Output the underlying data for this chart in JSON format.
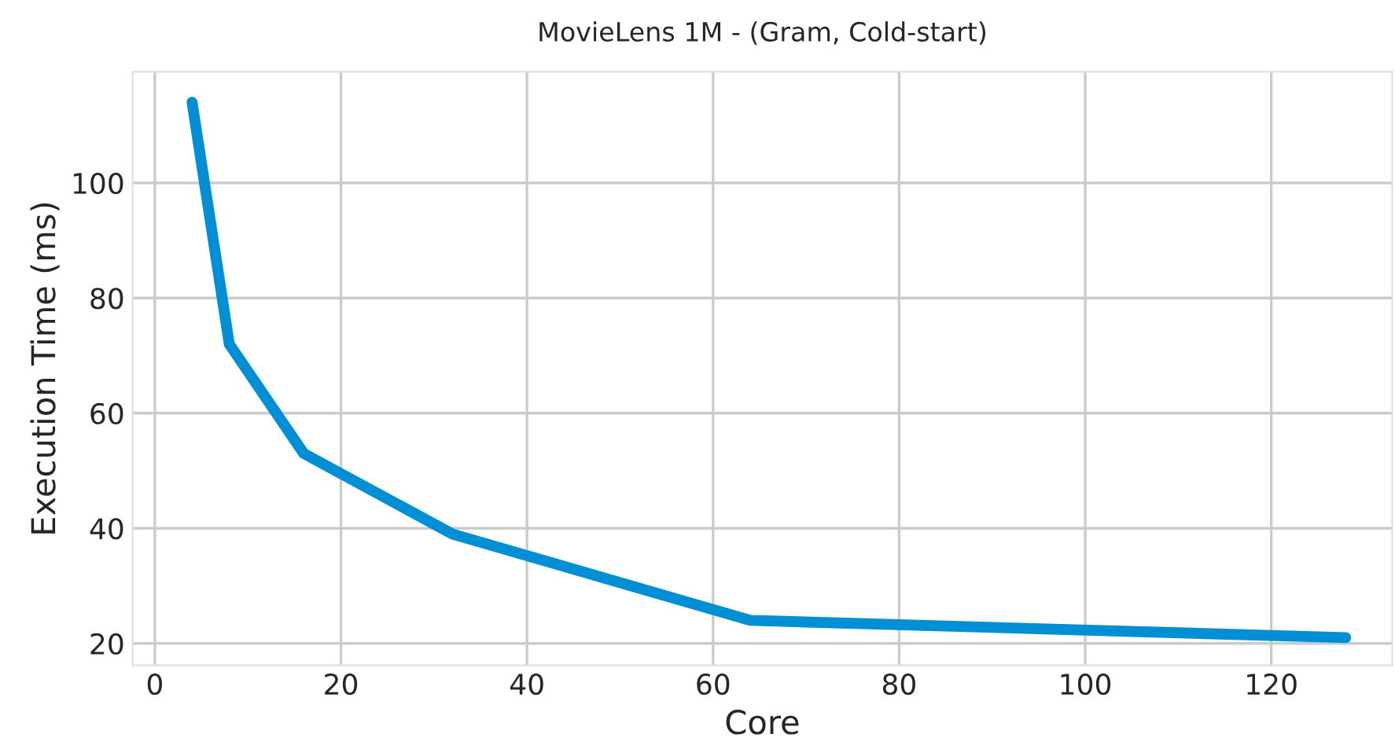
{
  "chart_data": {
    "type": "line",
    "title": "MovieLens 1M - (Gram, Cold-start)",
    "xlabel": "Core",
    "ylabel": "Execution Time (ms)",
    "x": [
      4,
      8,
      16,
      32,
      64,
      128
    ],
    "series": [
      {
        "color": "#008fd5",
        "values": [
          114,
          72,
          53,
          39,
          24,
          21
        ]
      }
    ],
    "xlim": [
      -2.4,
      133
    ],
    "ylim": [
      16.2,
      119.3
    ],
    "xticks": [
      0,
      20,
      40,
      60,
      80,
      100,
      120
    ],
    "yticks": [
      20,
      40,
      60,
      80,
      100
    ],
    "grid": true,
    "marker": "none",
    "line_style": "solid"
  }
}
